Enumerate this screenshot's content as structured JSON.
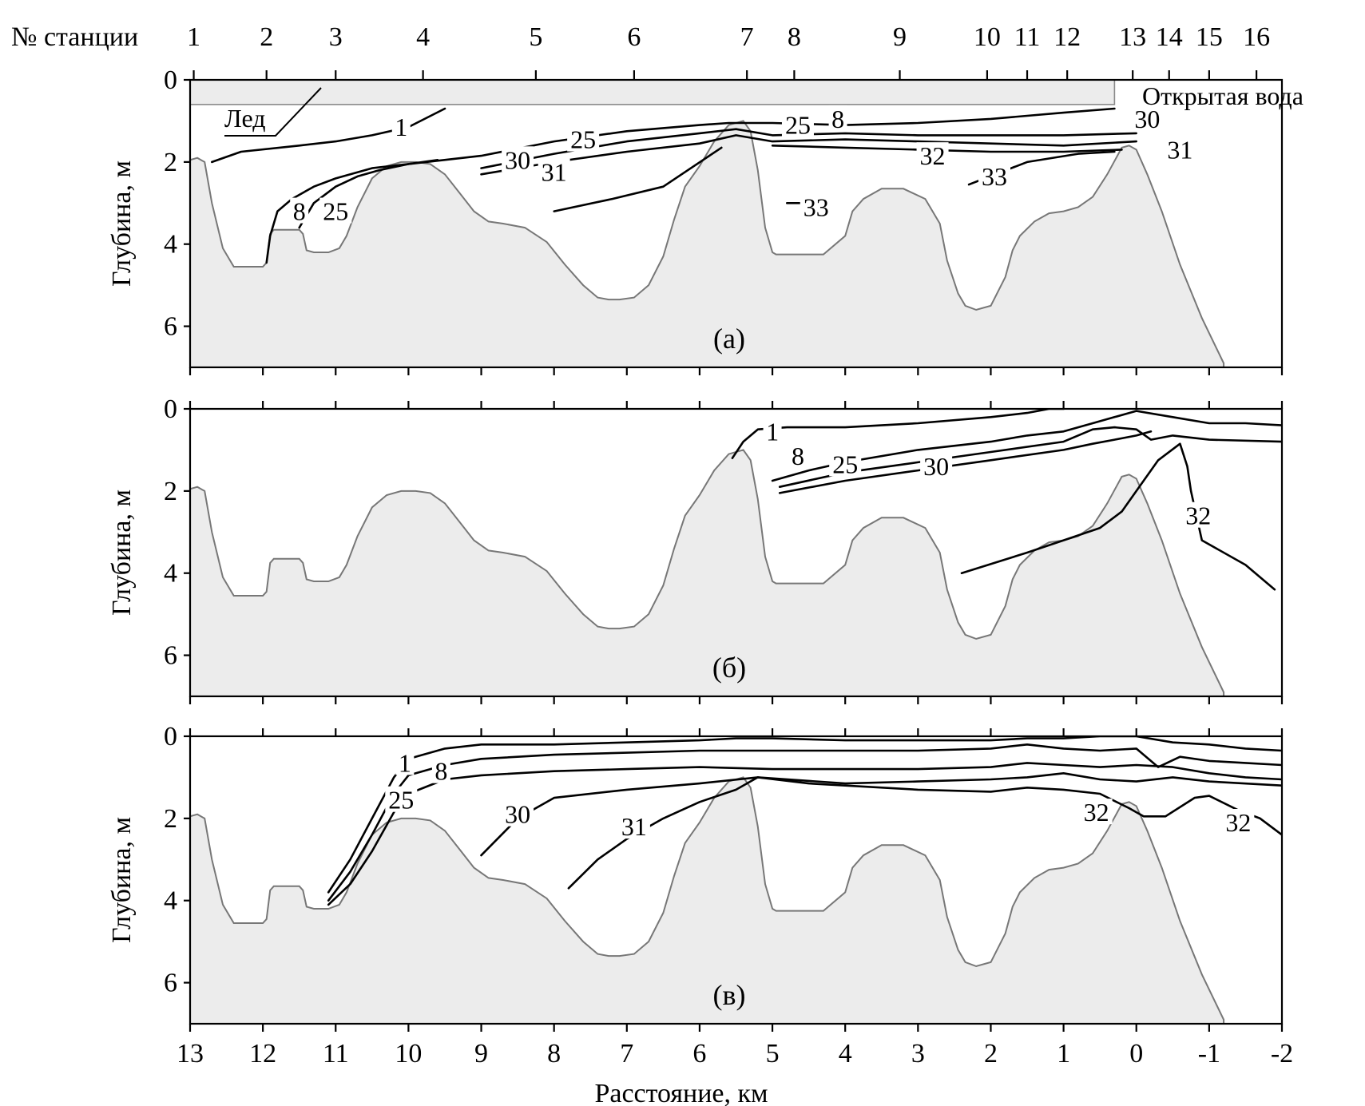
{
  "chart_data": {
    "type": "line",
    "station_header_label": "№ станции",
    "stations": [
      "1",
      "2",
      "3",
      "4",
      "5",
      "6",
      "7",
      "8",
      "9",
      "10",
      "11",
      "12",
      "13",
      "14",
      "15",
      "16"
    ],
    "station_positions_km": [
      12.95,
      11.95,
      11.0,
      9.8,
      8.25,
      6.9,
      5.35,
      4.7,
      3.25,
      2.05,
      1.5,
      0.95,
      0.05,
      -0.45,
      -1.0,
      -1.65
    ],
    "xlabel": "Расстояние, км",
    "xlim": [
      13,
      -2
    ],
    "x_ticks": [
      "13",
      "12",
      "11",
      "10",
      "9",
      "8",
      "7",
      "6",
      "5",
      "4",
      "3",
      "2",
      "1",
      "0",
      "-1",
      "-2"
    ],
    "ylabel": "Глубина, м",
    "ylim": [
      0,
      7
    ],
    "y_ticks": [
      "0",
      "2",
      "4",
      "6"
    ],
    "bathymetry": {
      "x": [
        13,
        12.9,
        12.8,
        12.7,
        12.55,
        12.4,
        12.2,
        12.0,
        11.95,
        11.9,
        11.85,
        11.7,
        11.5,
        11.45,
        11.4,
        11.3,
        11.1,
        10.95,
        10.85,
        10.7,
        10.5,
        10.3,
        10.1,
        9.9,
        9.7,
        9.5,
        9.3,
        9.1,
        8.9,
        8.7,
        8.4,
        8.1,
        7.85,
        7.6,
        7.4,
        7.25,
        7.1,
        6.9,
        6.7,
        6.5,
        6.35,
        6.2,
        6.0,
        5.8,
        5.6,
        5.4,
        5.3,
        5.2,
        5.1,
        5.0,
        4.95,
        4.85,
        4.6,
        4.3,
        4.0,
        3.9,
        3.75,
        3.5,
        3.2,
        2.9,
        2.7,
        2.6,
        2.45,
        2.35,
        2.2,
        2.0,
        1.8,
        1.7,
        1.6,
        1.4,
        1.2,
        1.0,
        0.8,
        0.6,
        0.4,
        0.2,
        0.1,
        0.0,
        -0.15,
        -0.35,
        -0.6,
        -0.9,
        -1.2
      ],
      "y": [
        1.95,
        1.9,
        2.0,
        3.0,
        4.1,
        4.55,
        4.55,
        4.55,
        4.45,
        3.75,
        3.65,
        3.65,
        3.65,
        3.75,
        4.15,
        4.2,
        4.2,
        4.1,
        3.8,
        3.1,
        2.4,
        2.1,
        2.0,
        2.0,
        2.05,
        2.3,
        2.75,
        3.2,
        3.45,
        3.5,
        3.6,
        3.95,
        4.5,
        5.0,
        5.3,
        5.35,
        5.35,
        5.3,
        5.0,
        4.3,
        3.4,
        2.6,
        2.1,
        1.5,
        1.1,
        1.0,
        1.25,
        2.2,
        3.6,
        4.2,
        4.25,
        4.25,
        4.25,
        4.25,
        3.8,
        3.2,
        2.9,
        2.65,
        2.65,
        2.9,
        3.5,
        4.4,
        5.2,
        5.5,
        5.6,
        5.5,
        4.8,
        4.15,
        3.8,
        3.45,
        3.25,
        3.2,
        3.1,
        2.85,
        2.3,
        1.65,
        1.6,
        1.7,
        2.3,
        3.2,
        4.5,
        5.8,
        6.9
      ]
    },
    "panels": [
      {
        "tag": "(а)",
        "ice_label": "Лед",
        "open_water_label": "Открытая вода",
        "ice": {
          "x_from": 13,
          "x_to": 0.3,
          "depth": 0.6
        },
        "series": [
          {
            "name": "1",
            "x": [
              12.7,
              12.3,
              11.5,
              11.0,
              10.5,
              10.0,
              9.5
            ],
            "y": [
              2.0,
              1.75,
              1.6,
              1.5,
              1.35,
              1.15,
              0.7
            ]
          },
          {
            "name": "8",
            "x": [
              11.95,
              11.9,
              11.8,
              11.6,
              11.3,
              11.0,
              10.5,
              10.0,
              9.6
            ],
            "y": [
              4.45,
              3.8,
              3.2,
              2.9,
              2.6,
              2.4,
              2.15,
              2.05,
              1.95
            ]
          },
          {
            "name": "25",
            "x": [
              11.5,
              11.3,
              11.0,
              10.7,
              10.4,
              10.0,
              9.0,
              8.0,
              7.0,
              6.0,
              5.6,
              5.0,
              4.0,
              3.0,
              2.0,
              1.0,
              0.3
            ],
            "y": [
              3.6,
              3.0,
              2.6,
              2.35,
              2.2,
              2.05,
              1.85,
              1.5,
              1.25,
              1.1,
              1.05,
              1.05,
              1.1,
              1.05,
              0.95,
              0.8,
              0.7
            ]
          },
          {
            "name": "30",
            "x": [
              9.0,
              8.0,
              7.0,
              6.0,
              5.5,
              5.0,
              4.0,
              3.0,
              2.0,
              1.0,
              0.0
            ],
            "y": [
              2.15,
              1.8,
              1.5,
              1.3,
              1.2,
              1.35,
              1.3,
              1.35,
              1.35,
              1.35,
              1.3
            ]
          },
          {
            "name": "31",
            "x": [
              9.0,
              8.0,
              7.0,
              6.0,
              5.5,
              5.0,
              4.0,
              3.0,
              2.0,
              1.0,
              0.0
            ],
            "y": [
              2.3,
              2.0,
              1.75,
              1.55,
              1.35,
              1.5,
              1.45,
              1.5,
              1.55,
              1.6,
              1.5
            ]
          },
          {
            "name": "31",
            "x": [
              8.0,
              7.2,
              6.5,
              5.7
            ],
            "y": [
              3.2,
              2.9,
              2.6,
              1.65
            ]
          },
          {
            "name": "32",
            "x": [
              5.0,
              4.0,
              3.0,
              2.0,
              1.0,
              0.2
            ],
            "y": [
              1.6,
              1.65,
              1.7,
              1.75,
              1.75,
              1.7
            ]
          },
          {
            "name": "33",
            "x": [
              2.3,
              1.5,
              0.8,
              0.3
            ],
            "y": [
              2.55,
              2.0,
              1.8,
              1.75
            ]
          },
          {
            "name": "33",
            "x": [
              4.8,
              4.2
            ],
            "y": [
              3.0,
              3.0
            ]
          }
        ],
        "labels": [
          {
            "text": "1",
            "x": 10.1,
            "y": 1.15
          },
          {
            "text": "8",
            "x": 11.5,
            "y": 3.2
          },
          {
            "text": "25",
            "x": 11.0,
            "y": 3.2
          },
          {
            "text": "30",
            "x": 8.5,
            "y": 1.95
          },
          {
            "text": "25",
            "x": 7.6,
            "y": 1.45
          },
          {
            "text": "31",
            "x": 8.0,
            "y": 2.25
          },
          {
            "text": "25",
            "x": 4.65,
            "y": 1.1
          },
          {
            "text": "8",
            "x": 4.1,
            "y": 0.95
          },
          {
            "text": "30",
            "x": -0.15,
            "y": 0.95
          },
          {
            "text": "31",
            "x": -0.6,
            "y": 1.7
          },
          {
            "text": "32",
            "x": 2.8,
            "y": 1.85
          },
          {
            "text": "33",
            "x": 1.95,
            "y": 2.35
          },
          {
            "text": "33",
            "x": 4.4,
            "y": 3.1
          }
        ]
      },
      {
        "tag": "(б)",
        "series": [
          {
            "name": "1",
            "x": [
              5.55,
              5.4,
              5.2,
              4.8,
              4.0,
              3.0,
              2.0,
              1.5,
              1.2,
              1.0
            ],
            "y": [
              1.2,
              0.8,
              0.5,
              0.45,
              0.45,
              0.35,
              0.2,
              0.1,
              0.0,
              0.0
            ]
          },
          {
            "name": "8",
            "x": [
              5.0,
              4.5,
              4.0,
              3.0,
              2.0,
              1.5,
              1.0,
              0.6,
              0.3,
              0.0,
              -0.5,
              -1.0,
              -1.5,
              -2.0
            ],
            "y": [
              1.75,
              1.5,
              1.3,
              1.0,
              0.8,
              0.65,
              0.55,
              0.35,
              0.2,
              0.05,
              0.2,
              0.35,
              0.35,
              0.4
            ]
          },
          {
            "name": "25",
            "x": [
              4.9,
              4.0,
              3.0,
              2.0,
              1.0,
              0.6,
              0.3,
              0.0,
              -0.2,
              -0.5,
              -1.0,
              -2.0
            ],
            "y": [
              1.9,
              1.55,
              1.3,
              1.05,
              0.8,
              0.5,
              0.45,
              0.5,
              0.75,
              0.65,
              0.75,
              0.8
            ]
          },
          {
            "name": "30",
            "x": [
              4.9,
              4.0,
              3.0,
              2.0,
              1.0,
              0.6,
              0.3,
              0.0,
              -0.2
            ],
            "y": [
              2.05,
              1.75,
              1.5,
              1.25,
              1.0,
              0.85,
              0.75,
              0.65,
              0.55
            ]
          },
          {
            "name": "32",
            "x": [
              2.4,
              1.5,
              1.0,
              0.5,
              0.2,
              0.0,
              -0.3,
              -0.6,
              -0.7,
              -0.75,
              -0.9,
              -1.5,
              -1.9
            ],
            "y": [
              4.0,
              3.5,
              3.2,
              2.9,
              2.5,
              2.0,
              1.25,
              0.85,
              1.4,
              2.0,
              3.2,
              3.8,
              4.4
            ]
          }
        ],
        "labels": [
          {
            "text": "1",
            "x": 5.0,
            "y": 0.55
          },
          {
            "text": "8",
            "x": 4.65,
            "y": 1.15
          },
          {
            "text": "25",
            "x": 4.0,
            "y": 1.35
          },
          {
            "text": "30",
            "x": 2.75,
            "y": 1.4
          },
          {
            "text": "32",
            "x": -0.85,
            "y": 2.6
          }
        ]
      },
      {
        "tag": "(в)",
        "series": [
          {
            "name": "1",
            "x": [
              11.1,
              10.8,
              10.5,
              10.2,
              10.0,
              9.5,
              9.0,
              8.0,
              7.0,
              6.0,
              5.5,
              5.0,
              4.0,
              3.0,
              2.0,
              1.5,
              1.0,
              0.5,
              0.0,
              -0.5,
              -1.0,
              -1.5,
              -2.0
            ],
            "y": [
              3.8,
              3.0,
              2.0,
              1.0,
              0.55,
              0.3,
              0.2,
              0.2,
              0.15,
              0.1,
              0.05,
              0.05,
              0.1,
              0.1,
              0.1,
              0.05,
              0.05,
              0.0,
              0.0,
              0.15,
              0.2,
              0.3,
              0.35
            ]
          },
          {
            "name": "8",
            "x": [
              11.1,
              10.8,
              10.5,
              10.2,
              10.0,
              9.5,
              9.0,
              8.0,
              7.0,
              6.0,
              5.0,
              4.0,
              3.0,
              2.0,
              1.5,
              1.0,
              0.5,
              0.0,
              -0.3,
              -0.6,
              -1.0,
              -1.5,
              -2.0
            ],
            "y": [
              4.0,
              3.3,
              2.4,
              1.4,
              0.95,
              0.7,
              0.55,
              0.45,
              0.4,
              0.35,
              0.35,
              0.35,
              0.35,
              0.3,
              0.2,
              0.3,
              0.35,
              0.3,
              0.75,
              0.5,
              0.6,
              0.65,
              0.7
            ]
          },
          {
            "name": "25",
            "x": [
              11.1,
              10.8,
              10.5,
              10.2,
              10.0,
              9.5,
              9.0,
              8.0,
              7.0,
              6.0,
              5.0,
              4.0,
              3.0,
              2.0,
              1.5,
              1.0,
              0.5,
              0.0,
              -0.5,
              -1.0,
              -1.5,
              -2.0
            ],
            "y": [
              4.1,
              3.6,
              2.8,
              1.85,
              1.4,
              1.05,
              0.95,
              0.85,
              0.8,
              0.75,
              0.8,
              0.8,
              0.8,
              0.75,
              0.65,
              0.7,
              0.75,
              0.7,
              0.75,
              0.9,
              1.0,
              1.05
            ]
          },
          {
            "name": "30",
            "x": [
              9.0,
              8.5,
              8.0,
              7.0,
              6.0,
              5.2,
              4.0,
              3.0,
              2.0,
              1.5,
              1.0,
              0.5,
              0.0,
              -0.5,
              -1.0,
              -2.0
            ],
            "y": [
              2.9,
              2.0,
              1.5,
              1.3,
              1.15,
              1.0,
              1.15,
              1.1,
              1.05,
              1.0,
              0.9,
              1.05,
              1.1,
              1.0,
              1.1,
              1.2
            ]
          },
          {
            "name": "32",
            "x": [
              5.2,
              4.5,
              4.0,
              3.0,
              2.0,
              1.5,
              1.0,
              0.5,
              0.1,
              -0.1,
              -0.4,
              -0.8,
              -1.0,
              -1.4,
              -1.7,
              -2.0
            ],
            "y": [
              1.0,
              1.15,
              1.2,
              1.3,
              1.35,
              1.25,
              1.3,
              1.4,
              1.75,
              1.95,
              1.95,
              1.5,
              1.45,
              1.8,
              2.0,
              2.4
            ]
          },
          {
            "name": "31",
            "x": [
              7.8,
              7.4,
              7.0,
              6.5,
              6.0,
              5.5,
              5.2
            ],
            "y": [
              3.7,
              3.0,
              2.5,
              2.0,
              1.6,
              1.3,
              1.0
            ]
          }
        ],
        "labels": [
          {
            "text": "1",
            "x": 10.05,
            "y": 0.65
          },
          {
            "text": "8",
            "x": 9.55,
            "y": 0.85
          },
          {
            "text": "25",
            "x": 10.1,
            "y": 1.55
          },
          {
            "text": "30",
            "x": 8.5,
            "y": 1.9
          },
          {
            "text": "31",
            "x": 6.9,
            "y": 2.2
          },
          {
            "text": "32",
            "x": 0.55,
            "y": 1.85
          },
          {
            "text": "32",
            "x": -1.4,
            "y": 2.1
          }
        ]
      }
    ]
  }
}
